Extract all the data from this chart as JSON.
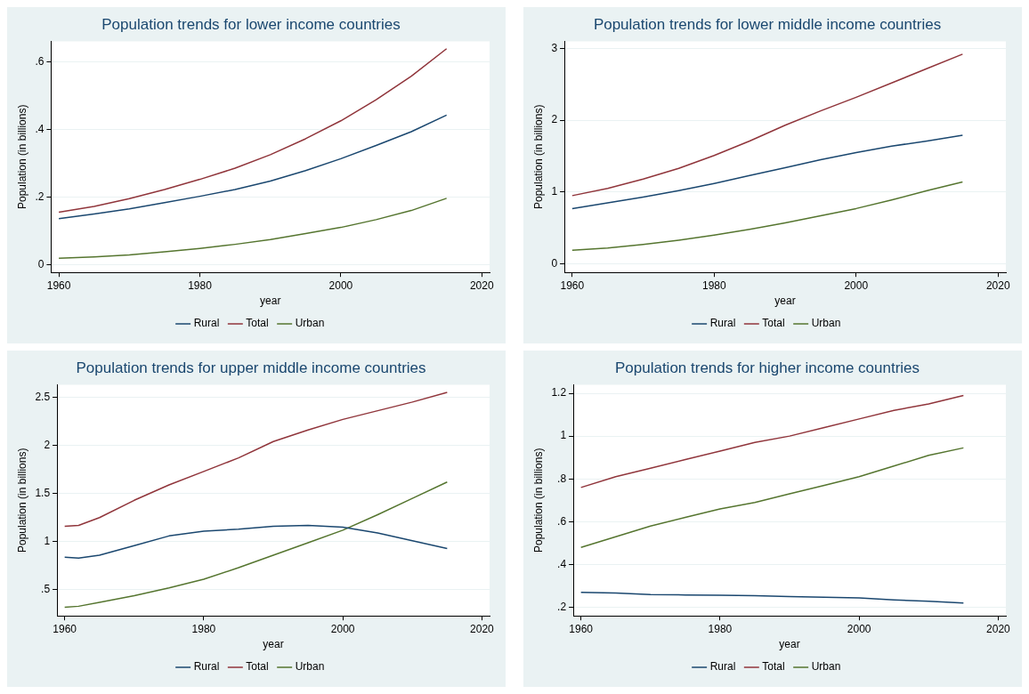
{
  "chart_data": [
    {
      "type": "line",
      "title": "Population trends for lower income countries",
      "xlabel": "year",
      "ylabel": "Population (in billions)",
      "x": [
        1960,
        1965,
        1970,
        1975,
        1980,
        1985,
        1990,
        1995,
        2000,
        2005,
        2010,
        2015
      ],
      "series": [
        {
          "name": "Rural",
          "color": "#1a476f",
          "values": [
            0.136,
            0.15,
            0.165,
            0.183,
            0.202,
            0.222,
            0.247,
            0.278,
            0.313,
            0.352,
            0.393,
            0.442
          ]
        },
        {
          "name": "Total",
          "color": "#90353b",
          "values": [
            0.155,
            0.172,
            0.195,
            0.222,
            0.252,
            0.285,
            0.325,
            0.372,
            0.425,
            0.487,
            0.557,
            0.638
          ]
        },
        {
          "name": "Urban",
          "color": "#55752f",
          "values": [
            0.019,
            0.023,
            0.029,
            0.038,
            0.048,
            0.06,
            0.074,
            0.092,
            0.11,
            0.133,
            0.16,
            0.196
          ]
        }
      ],
      "xlim": [
        1958.9,
        2021.1
      ],
      "xticks": [
        1960,
        1980,
        2000,
        2020
      ],
      "ylim": [
        -0.023,
        0.66
      ],
      "yticks": [
        0,
        {
          "value": 0.2,
          "label": ".2"
        },
        {
          "value": 0.4,
          "label": ".4"
        },
        {
          "value": 0.6,
          "label": ".6"
        }
      ],
      "grid": "y",
      "legend": "bottom",
      "marker": "none",
      "line_style": "solid"
    },
    {
      "type": "line",
      "title": "Population trends for lower middle income countries",
      "xlabel": "year",
      "ylabel": "Population (in billions)",
      "x": [
        1960,
        1965,
        1970,
        1975,
        1980,
        1985,
        1990,
        1995,
        2000,
        2005,
        2010,
        2015
      ],
      "series": [
        {
          "name": "Rural",
          "color": "#1a476f",
          "values": [
            0.77,
            0.85,
            0.93,
            1.02,
            1.12,
            1.23,
            1.34,
            1.45,
            1.55,
            1.64,
            1.71,
            1.79
          ]
        },
        {
          "name": "Total",
          "color": "#90353b",
          "values": [
            0.95,
            1.05,
            1.18,
            1.33,
            1.51,
            1.71,
            1.93,
            2.13,
            2.32,
            2.52,
            2.72,
            2.92
          ]
        },
        {
          "name": "Urban",
          "color": "#55752f",
          "values": [
            0.19,
            0.22,
            0.27,
            0.33,
            0.4,
            0.48,
            0.57,
            0.67,
            0.77,
            0.89,
            1.02,
            1.14
          ]
        }
      ],
      "xlim": [
        1958.9,
        2021.1
      ],
      "xticks": [
        1960,
        1980,
        2000,
        2020
      ],
      "ylim": [
        -0.12,
        3.1
      ],
      "yticks": [
        0,
        1,
        2,
        3
      ],
      "grid": "y",
      "legend": "bottom",
      "marker": "none",
      "line_style": "solid"
    },
    {
      "type": "line",
      "title": "Population trends for upper middle income countries",
      "xlabel": "year",
      "ylabel": "Population (in billions)",
      "x": [
        1960,
        1962,
        1965,
        1970,
        1975,
        1980,
        1985,
        1990,
        1995,
        2000,
        2005,
        2010,
        2015
      ],
      "series": [
        {
          "name": "Rural",
          "color": "#1a476f",
          "values": [
            0.84,
            0.83,
            0.86,
            0.96,
            1.06,
            1.11,
            1.13,
            1.16,
            1.17,
            1.15,
            1.09,
            1.01,
            0.93
          ]
        },
        {
          "name": "Total",
          "color": "#90353b",
          "values": [
            1.16,
            1.17,
            1.25,
            1.43,
            1.59,
            1.73,
            1.87,
            2.04,
            2.16,
            2.27,
            2.36,
            2.45,
            2.55
          ]
        },
        {
          "name": "Urban",
          "color": "#55752f",
          "values": [
            0.32,
            0.33,
            0.37,
            0.44,
            0.52,
            0.61,
            0.73,
            0.86,
            0.99,
            1.12,
            1.28,
            1.45,
            1.62
          ]
        }
      ],
      "xlim": [
        1958.9,
        2021.1
      ],
      "xticks": [
        1960,
        1980,
        2000,
        2020
      ],
      "ylim": [
        0.23,
        2.63
      ],
      "yticks": [
        {
          "value": 0.5,
          "label": ".5"
        },
        1,
        1.5,
        2,
        2.5
      ],
      "grid": "y",
      "legend": "bottom",
      "marker": "none",
      "line_style": "solid"
    },
    {
      "type": "line",
      "title": "Population trends for higher income countries",
      "xlabel": "year",
      "ylabel": "Population (in billions)",
      "x": [
        1960,
        1965,
        1970,
        1975,
        1980,
        1985,
        1990,
        1995,
        2000,
        2005,
        2010,
        2015
      ],
      "series": [
        {
          "name": "Rural",
          "color": "#1a476f",
          "values": [
            0.27,
            0.267,
            0.26,
            0.258,
            0.256,
            0.254,
            0.25,
            0.247,
            0.244,
            0.235,
            0.228,
            0.22
          ]
        },
        {
          "name": "Total",
          "color": "#90353b",
          "values": [
            0.76,
            0.81,
            0.85,
            0.89,
            0.93,
            0.97,
            1.0,
            1.04,
            1.08,
            1.12,
            1.15,
            1.19
          ]
        },
        {
          "name": "Urban",
          "color": "#55752f",
          "values": [
            0.48,
            0.53,
            0.58,
            0.62,
            0.66,
            0.69,
            0.73,
            0.77,
            0.81,
            0.86,
            0.91,
            0.945
          ]
        }
      ],
      "xlim": [
        1958.9,
        2021.1
      ],
      "xticks": [
        1960,
        1980,
        2000,
        2020
      ],
      "ylim": [
        0.16,
        1.24
      ],
      "yticks": [
        {
          "value": 0.2,
          "label": ".2"
        },
        {
          "value": 0.4,
          "label": ".4"
        },
        {
          "value": 0.6,
          "label": ".6"
        },
        {
          "value": 0.8,
          "label": ".8"
        },
        1,
        {
          "value": 1.2,
          "label": "1.2"
        }
      ],
      "grid": "y",
      "legend": "bottom",
      "marker": "none",
      "line_style": "solid"
    }
  ]
}
